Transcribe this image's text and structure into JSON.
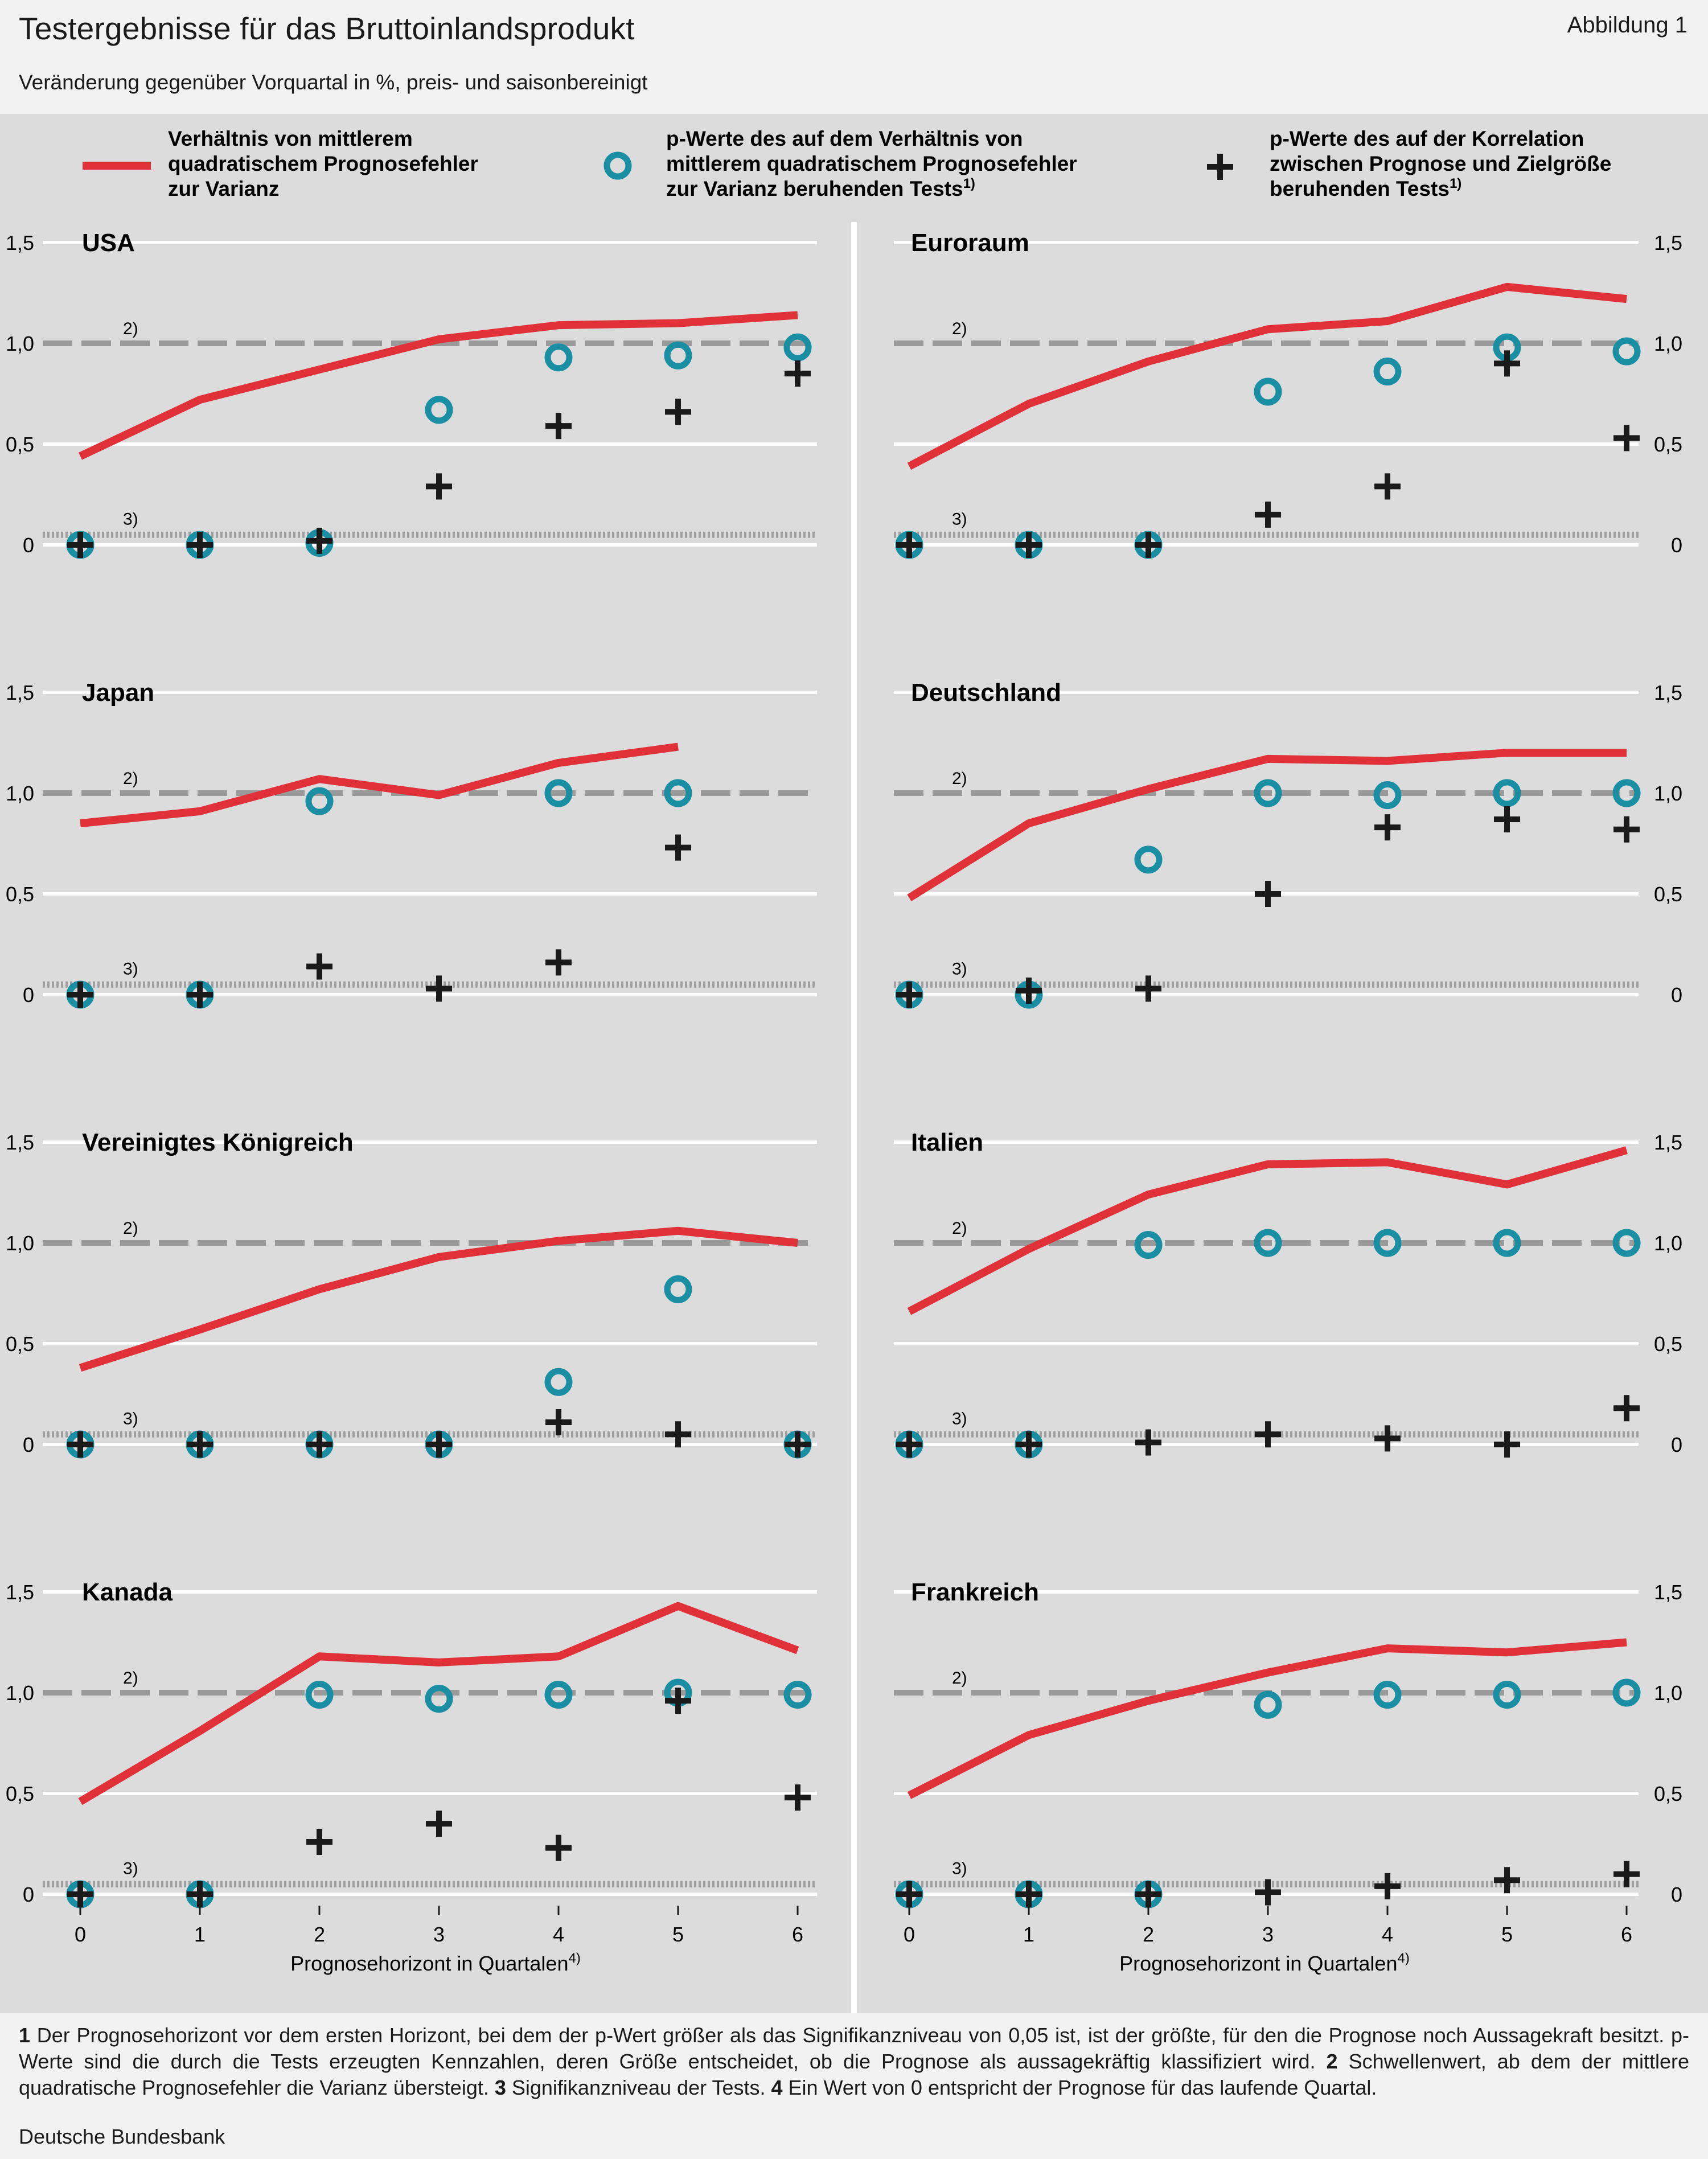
{
  "title": "Testergebnisse für das Bruttoinlandsprodukt",
  "figure_label": "Abbildung 1",
  "subtitle": "Veränderung gegenüber Vorquartal in %, preis- und saisonbereinigt",
  "legend": {
    "line": [
      "Verhältnis von mittlerem",
      "quadratischem Prognosefehler",
      "zur Varianz"
    ],
    "circle": [
      "p-Werte des auf dem Verhältnis von",
      "mittlerem quadratischem Prognosefehler",
      "zur Varianz beruhenden Tests"
    ],
    "circle_sup": "1)",
    "plus": [
      "p-Werte des auf der Korrelation",
      "zwischen Prognose und Zielgröße",
      "beruhenden Tests"
    ],
    "plus_sup": "1)"
  },
  "xlabel": "Prognosehorizont in Quartalen",
  "xlabel_sup": "4)",
  "ref_label_threshold": "2)",
  "ref_label_significance": "3)",
  "colors": {
    "line": "#e03038",
    "circle": "#1a8fa3",
    "plus": "#1a1a1a",
    "threshold": "#9a9a9a",
    "panel_bg": "#dcdcdc"
  },
  "footnotes": [
    {
      "num": "1",
      "text": " Der Prognosehorizont vor dem ersten Horizont, bei dem der p-Wert größer als das Signifikanzniveau von 0,05 ist, ist der größte, für den die Prognose noch Aussagekraft besitzt. p-Werte sind die durch die Tests erzeugten Kennzahlen, deren Größe entscheidet, ob die Prognose als aussagekräftig klassifiziert wird. "
    },
    {
      "num": "2",
      "text": " Schwellenwert, ab dem der mittlere quadratische Prognosefehler die Varianz übersteigt. "
    },
    {
      "num": "3",
      "text": " Signifikanzniveau der Tests. "
    },
    {
      "num": "4",
      "text": " Ein Wert von 0 entspricht der Prognose für das laufende Quartal."
    }
  ],
  "source": "Deutsche Bundesbank",
  "chart_data": {
    "type": "line",
    "x": [
      0,
      1,
      2,
      3,
      4,
      5,
      6
    ],
    "xticks": [
      "0",
      "1",
      "2",
      "3",
      "4",
      "5",
      "6"
    ],
    "yticks": [
      "0",
      "0,5",
      "1,0",
      "1,5"
    ],
    "ylim": [
      0,
      1.5
    ],
    "threshold": 1.0,
    "significance": 0.05,
    "panels": [
      {
        "name": "USA",
        "ratio": [
          0.44,
          0.72,
          0.87,
          1.02,
          1.09,
          1.1,
          1.14
        ],
        "p_ratio": [
          0.0,
          0.0,
          0.01,
          0.67,
          0.93,
          0.94,
          0.98
        ],
        "p_corr": [
          0.0,
          0.0,
          0.02,
          0.29,
          0.59,
          0.66,
          0.85
        ]
      },
      {
        "name": "Euroraum",
        "ratio": [
          0.39,
          0.7,
          0.91,
          1.07,
          1.11,
          1.28,
          1.22
        ],
        "p_ratio": [
          0.0,
          0.0,
          0.0,
          0.76,
          0.86,
          0.98,
          0.96
        ],
        "p_corr": [
          0.0,
          0.0,
          0.0,
          0.15,
          0.29,
          0.9,
          0.53
        ]
      },
      {
        "name": "Japan",
        "ratio": [
          0.85,
          0.91,
          1.07,
          0.99,
          1.15,
          1.23,
          null
        ],
        "p_ratio": [
          0.0,
          0.0,
          0.96,
          null,
          1.0,
          1.0,
          null
        ],
        "p_corr": [
          0.0,
          0.0,
          0.14,
          0.03,
          0.16,
          0.73,
          null
        ]
      },
      {
        "name": "Deutschland",
        "ratio": [
          0.48,
          0.85,
          1.02,
          1.17,
          1.16,
          1.2,
          1.2
        ],
        "p_ratio": [
          0.0,
          0.0,
          0.67,
          1.0,
          0.99,
          1.0,
          1.0
        ],
        "p_corr": [
          0.0,
          0.02,
          0.03,
          0.5,
          0.83,
          0.87,
          0.82
        ]
      },
      {
        "name": "Vereinigtes Königreich",
        "ratio": [
          0.38,
          0.57,
          0.77,
          0.93,
          1.01,
          1.06,
          1.0
        ],
        "p_ratio": [
          0.0,
          0.0,
          0.0,
          0.0,
          0.31,
          0.77,
          0.0
        ],
        "p_corr": [
          0.0,
          0.0,
          0.0,
          0.0,
          0.11,
          0.05,
          0.0
        ]
      },
      {
        "name": "Italien",
        "ratio": [
          0.66,
          0.97,
          1.24,
          1.39,
          1.4,
          1.29,
          1.46
        ],
        "p_ratio": [
          0.0,
          0.0,
          0.99,
          1.0,
          1.0,
          1.0,
          1.0
        ],
        "p_corr": [
          0.0,
          0.0,
          0.01,
          0.05,
          0.03,
          0.0,
          0.18
        ]
      },
      {
        "name": "Kanada",
        "ratio": [
          0.46,
          0.81,
          1.18,
          1.15,
          1.18,
          1.43,
          1.21
        ],
        "p_ratio": [
          0.0,
          0.0,
          0.99,
          0.97,
          0.99,
          1.0,
          0.99
        ],
        "p_corr": [
          0.0,
          0.0,
          0.26,
          0.35,
          0.23,
          0.96,
          0.48
        ]
      },
      {
        "name": "Frankreich",
        "ratio": [
          0.49,
          0.79,
          0.96,
          1.1,
          1.22,
          1.2,
          1.25
        ],
        "p_ratio": [
          0.0,
          0.0,
          0.0,
          0.94,
          0.99,
          0.99,
          1.0
        ],
        "p_corr": [
          0.0,
          0.0,
          0.0,
          0.01,
          0.04,
          0.07,
          0.1
        ]
      }
    ]
  }
}
